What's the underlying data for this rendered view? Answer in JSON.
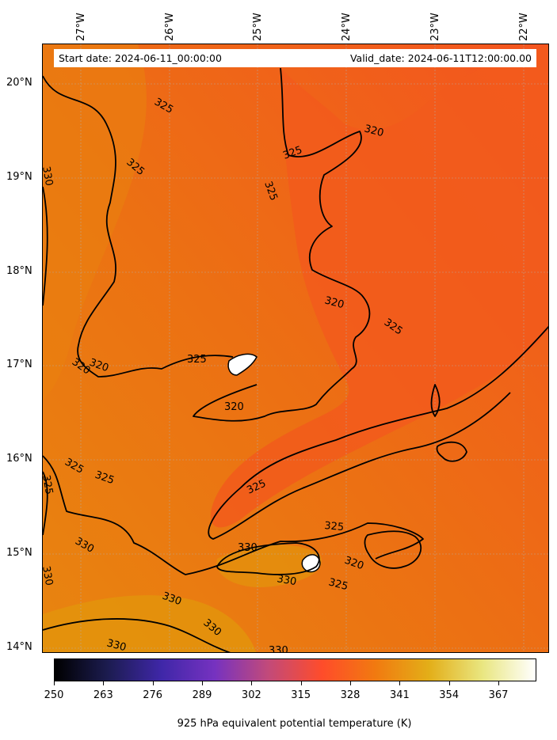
{
  "info": {
    "start_label": "Start date: 2024-06-11_00:00:00",
    "valid_label": "Valid_date: 2024-06-11T12:00:00.00"
  },
  "axes": {
    "longitude_labels": [
      "27°W",
      "26°W",
      "25°W",
      "24°W",
      "23°W",
      "22°W"
    ],
    "latitude_labels": [
      "20°N",
      "19°N",
      "18°N",
      "17°N",
      "16°N",
      "15°N",
      "14°N"
    ]
  },
  "colorbar": {
    "title": "925 hPa equivalent potential temperature (K)",
    "ticks": [
      "250",
      "263",
      "276",
      "289",
      "302",
      "315",
      "328",
      "341",
      "354",
      "367"
    ],
    "range": [
      250,
      377
    ],
    "colormap": "CMRmap",
    "colors": [
      "#000000",
      "#1c1c50",
      "#3f27a8",
      "#7632c0",
      "#c24a7a",
      "#ff4c2a",
      "#f17a10",
      "#e3ae18",
      "#e9e680",
      "#ffffff"
    ]
  },
  "contours": {
    "labels": [
      "325",
      "320",
      "325",
      "325",
      "325",
      "320",
      "325",
      "325",
      "320",
      "320",
      "320",
      "325",
      "325",
      "325",
      "325",
      "330",
      "320",
      "325",
      "330",
      "330",
      "330",
      "330",
      "325",
      "330",
      "330",
      "330",
      "330"
    ]
  },
  "map": {
    "field": "925 hPa equivalent potential temperature",
    "background_colors": {
      "cool": "#f4541f",
      "mid": "#ea7611",
      "warm": "#e59a0c",
      "max": "#ffffff"
    },
    "gridlines": "dotted"
  }
}
